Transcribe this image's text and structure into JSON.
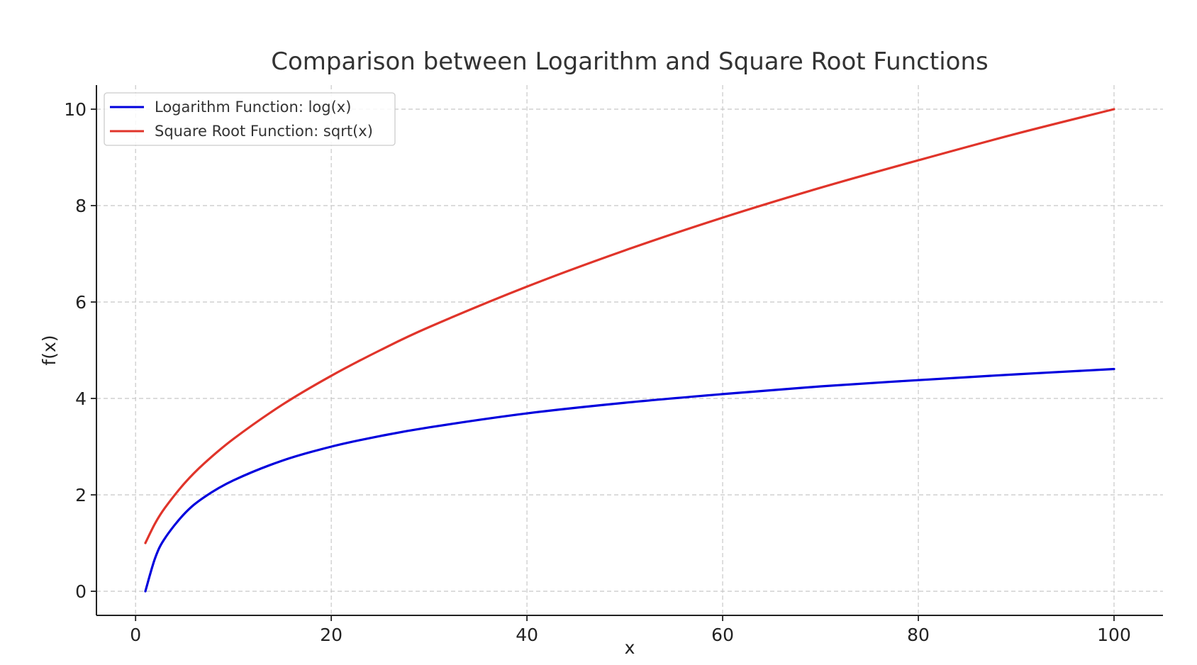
{
  "chart_data": {
    "type": "line",
    "title": "Comparison between Logarithm and Square Root Functions",
    "xlabel": "x",
    "ylabel": "f(x)",
    "xlim": [
      -4,
      105
    ],
    "ylim": [
      -0.5,
      10.5
    ],
    "xticks": [
      0,
      20,
      40,
      60,
      80,
      100
    ],
    "yticks": [
      0,
      2,
      4,
      6,
      8,
      10
    ],
    "grid": true,
    "legend_position": "top-left",
    "x": [
      1,
      2,
      3,
      5,
      7,
      10,
      15,
      20,
      25,
      30,
      40,
      50,
      60,
      70,
      80,
      90,
      100
    ],
    "series": [
      {
        "name": "Logarithm Function: log(x)",
        "color": "#0000dd",
        "values": [
          0,
          0.69,
          1.1,
          1.61,
          1.95,
          2.3,
          2.71,
          3.0,
          3.22,
          3.4,
          3.69,
          3.91,
          4.09,
          4.25,
          4.38,
          4.5,
          4.61
        ]
      },
      {
        "name": "Square Root Function: sqrt(x)",
        "color": "#e0342a",
        "values": [
          1,
          1.41,
          1.73,
          2.24,
          2.65,
          3.16,
          3.87,
          4.47,
          5.0,
          5.48,
          6.32,
          7.07,
          7.75,
          8.37,
          8.94,
          9.49,
          10
        ]
      }
    ]
  }
}
